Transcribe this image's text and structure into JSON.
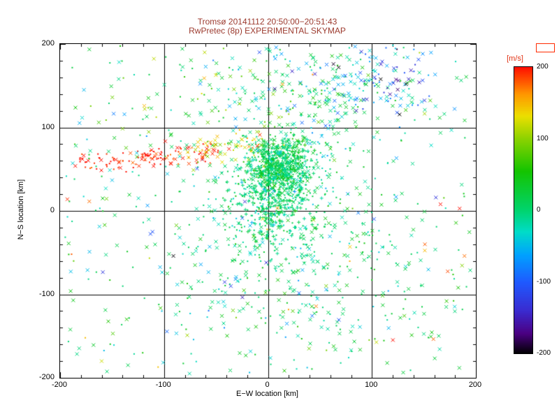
{
  "title": {
    "line1": "Tromsø 20141112 20:50:00−20:51:43",
    "line2": "RwPretec (8p) EXPERIMENTAL SKYMAP",
    "color": "#9c3a2e"
  },
  "chart_data": {
    "type": "scatter",
    "title": "Tromsø 20141112 20:50:00−20:51:43 / RwPretec (8p) EXPERIMENTAL SKYMAP",
    "xlabel": "E−W location [km]",
    "ylabel": "N−S location [km]",
    "xlim": [
      -200,
      200
    ],
    "ylim": [
      -200,
      200
    ],
    "xticks": [
      -200,
      -100,
      0,
      100,
      200
    ],
    "yticks": [
      -200,
      -100,
      0,
      100,
      200
    ],
    "grid": true,
    "grid_values": [
      -100,
      0,
      100
    ],
    "minor_tick_step": 20,
    "major_tick_step": 100,
    "point_color_meaning": "Doppler velocity [m/s], mapped through rainbow colorbar",
    "colorbar": {
      "label": "[m/s]",
      "label_color": "#e23315",
      "box_color": "#ff2a00",
      "min": -200,
      "max": 200,
      "ticks": [
        200,
        100,
        0,
        -100,
        -200
      ],
      "position": "right"
    },
    "colormap": [
      {
        "v": -200,
        "c": "#000000"
      },
      {
        "v": -172,
        "c": "#4b0082"
      },
      {
        "v": -140,
        "c": "#3a2bd0"
      },
      {
        "v": -100,
        "c": "#1f5aff"
      },
      {
        "v": -62,
        "c": "#00a2ff"
      },
      {
        "v": -30,
        "c": "#00dcc8"
      },
      {
        "v": 0,
        "c": "#00d46e"
      },
      {
        "v": 55,
        "c": "#14c400"
      },
      {
        "v": 100,
        "c": "#8cd200"
      },
      {
        "v": 132,
        "c": "#ecdf00"
      },
      {
        "v": 162,
        "c": "#ff9800"
      },
      {
        "v": 200,
        "c": "#ff0f00"
      }
    ],
    "clusters": [
      {
        "name": "core-upper",
        "dist": "gauss",
        "cx": 12,
        "cy": 55,
        "sx": 15,
        "sy": 15,
        "count": 620,
        "v_mean": 12,
        "v_sigma": 22,
        "markers": [
          "dot",
          "plus",
          "x",
          "dot"
        ],
        "seed": 11
      },
      {
        "name": "core-lower",
        "dist": "gauss",
        "cx": 6,
        "cy": 10,
        "sx": 20,
        "sy": 26,
        "count": 460,
        "v_mean": 5,
        "v_sigma": 20,
        "markers": [
          "dot",
          "plus",
          "dot"
        ],
        "seed": 12
      },
      {
        "name": "core-halo",
        "dist": "gauss",
        "cx": 12,
        "cy": 25,
        "sx": 55,
        "sy": 62,
        "count": 340,
        "v_mean": 5,
        "v_sigma": 30,
        "markers": [
          "dot",
          "x"
        ],
        "seed": 13
      },
      {
        "name": "lower-mid",
        "dist": "gauss",
        "cx": 25,
        "cy": -75,
        "sx": 60,
        "sy": 48,
        "count": 190,
        "v_mean": 2,
        "v_sigma": 26,
        "markers": [
          "dot",
          "x"
        ],
        "seed": 14
      },
      {
        "name": "upper-band",
        "dist": "gauss",
        "cx": 55,
        "cy": 148,
        "sx": 55,
        "sy": 30,
        "count": 215,
        "v_mean": -5,
        "v_sigma": 45,
        "markers": [
          "x",
          "dot",
          "x"
        ],
        "seed": 15
      },
      {
        "name": "field-uniform",
        "dist": "uniform",
        "x0": -196,
        "x1": 196,
        "y0": -196,
        "y1": 196,
        "count": 400,
        "v_mean": 5,
        "v_sigma": 38,
        "markers": [
          "x",
          "dot"
        ],
        "seed": 16
      },
      {
        "name": "red-streak",
        "dist": "streak",
        "x0": -188,
        "x1": -48,
        "ya": 57,
        "yb": 72,
        "y_sigma": 6,
        "count": 125,
        "v_mean": 196,
        "v_sigma": 14,
        "markers": [
          "dot",
          "dot",
          "x"
        ],
        "seed": 17
      },
      {
        "name": "streak-tail",
        "dist": "streak",
        "x0": -78,
        "x1": -4,
        "ya": 68,
        "yb": 80,
        "y_sigma": 8,
        "count": 55,
        "v_mean": 135,
        "v_sigma": 30,
        "markers": [
          "dot",
          "x"
        ],
        "seed": 18
      },
      {
        "name": "warm-upper-left",
        "dist": "gauss",
        "cx": -62,
        "cy": 122,
        "sx": 48,
        "sy": 28,
        "count": 45,
        "v_mean": 95,
        "v_sigma": 45,
        "markers": [
          "x",
          "dot"
        ],
        "seed": 19
      },
      {
        "name": "blue-top-right",
        "dist": "gauss",
        "cx": 115,
        "cy": 158,
        "sx": 24,
        "sy": 20,
        "count": 55,
        "v_mean": -125,
        "v_sigma": 45,
        "markers": [
          "x",
          "dot"
        ],
        "seed": 20
      },
      {
        "name": "cool-sparse",
        "dist": "uniform",
        "x0": -180,
        "x1": 185,
        "y0": -140,
        "y1": 198,
        "count": 45,
        "v_mean": -75,
        "v_sigma": 55,
        "markers": [
          "x"
        ],
        "seed": 21
      },
      {
        "name": "warm-sparse",
        "dist": "uniform",
        "x0": -190,
        "x1": 190,
        "y0": -190,
        "y1": 130,
        "count": 32,
        "v_mean": 150,
        "v_sigma": 40,
        "markers": [
          "x",
          "dot"
        ],
        "seed": 22
      }
    ],
    "outliers": [
      {
        "x": 166,
        "y": 8,
        "v": 200,
        "marker": "x"
      },
      {
        "x": -193,
        "y": 14,
        "v": 192,
        "marker": "x"
      },
      {
        "x": 151,
        "y": -40,
        "v": 178,
        "marker": "x"
      },
      {
        "x": -91,
        "y": -54,
        "v": -198,
        "marker": "x"
      },
      {
        "x": 63,
        "y": 176,
        "v": -192,
        "marker": "x"
      },
      {
        "x": 133,
        "y": 152,
        "v": -200,
        "marker": "x"
      },
      {
        "x": 183,
        "y": -92,
        "v": 55,
        "marker": "x"
      },
      {
        "x": -160,
        "y": -180,
        "v": 120,
        "marker": "x"
      }
    ]
  }
}
